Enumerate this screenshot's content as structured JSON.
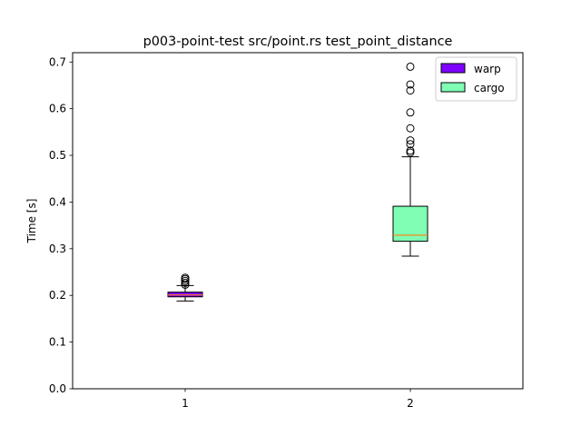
{
  "chart_data": {
    "type": "boxplot",
    "title": "p003-point-test src/point.rs test_point_distance",
    "xlabel": "",
    "ylabel": "Time [s]",
    "ylim": [
      0.0,
      0.72
    ],
    "xlim": [
      0.5,
      2.5
    ],
    "yticks": [
      0.0,
      0.1,
      0.2,
      0.3,
      0.4,
      0.5,
      0.6,
      0.7
    ],
    "ytick_labels": [
      "0.0",
      "0.1",
      "0.2",
      "0.3",
      "0.4",
      "0.5",
      "0.6",
      "0.7"
    ],
    "xticks": [
      1,
      2
    ],
    "xtick_labels": [
      "1",
      "2"
    ],
    "grid": false,
    "legend_position": "top-right",
    "median_color": "#ff7f0e",
    "series": [
      {
        "name": "warp",
        "position": 1,
        "color": "#7f00ff",
        "whisker_low": 0.188,
        "q1": 0.197,
        "median": 0.201,
        "q3": 0.207,
        "whisker_high": 0.221,
        "outliers": [
          0.223,
          0.227,
          0.231,
          0.235,
          0.238
        ]
      },
      {
        "name": "cargo",
        "position": 2,
        "color": "#80ffb4",
        "whisker_low": 0.284,
        "q1": 0.316,
        "median": 0.329,
        "q3": 0.391,
        "whisker_high": 0.497,
        "outliers": [
          0.506,
          0.51,
          0.524,
          0.532,
          0.558,
          0.592,
          0.639,
          0.652,
          0.69
        ]
      }
    ]
  }
}
